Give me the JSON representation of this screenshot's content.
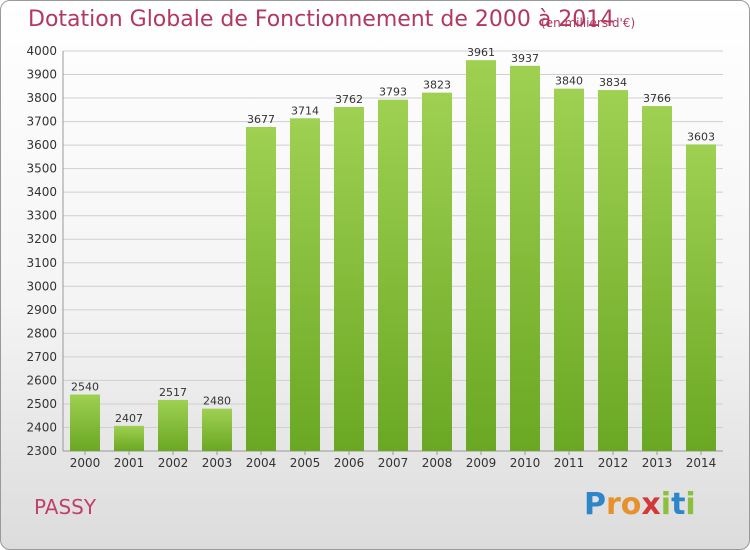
{
  "header": {
    "title": "Dotation Globale de Fonctionnement de 2000 à 2014",
    "subtitle": "(en milliers d'€)"
  },
  "footer": {
    "location": "PASSY",
    "brand": [
      "P",
      "r",
      "o",
      "x",
      "i",
      "t",
      "i"
    ],
    "brand_colors": [
      "#2e86c8",
      "#e8902c",
      "#e8902c",
      "#d23a3a",
      "#8cbf3c",
      "#2e86c8",
      "#8cbf3c"
    ]
  },
  "chart_data": {
    "type": "bar",
    "categories": [
      "2000",
      "2001",
      "2002",
      "2003",
      "2004",
      "2005",
      "2006",
      "2007",
      "2008",
      "2009",
      "2010",
      "2011",
      "2012",
      "2013",
      "2014"
    ],
    "values": [
      2540,
      2407,
      2517,
      2480,
      3677,
      3714,
      3762,
      3793,
      3823,
      3961,
      3937,
      3840,
      3834,
      3766,
      3603
    ],
    "title": "Dotation Globale de Fonctionnement de 2000 à 2014",
    "ylim": [
      2300,
      4000
    ],
    "yticks": [
      2300,
      2400,
      2500,
      2600,
      2700,
      2800,
      2900,
      3000,
      3100,
      3200,
      3300,
      3400,
      3500,
      3600,
      3700,
      3800,
      3900,
      4000
    ],
    "grid": true,
    "bar_color_top": "#9fd052",
    "bar_color_bottom": "#6aa823"
  }
}
